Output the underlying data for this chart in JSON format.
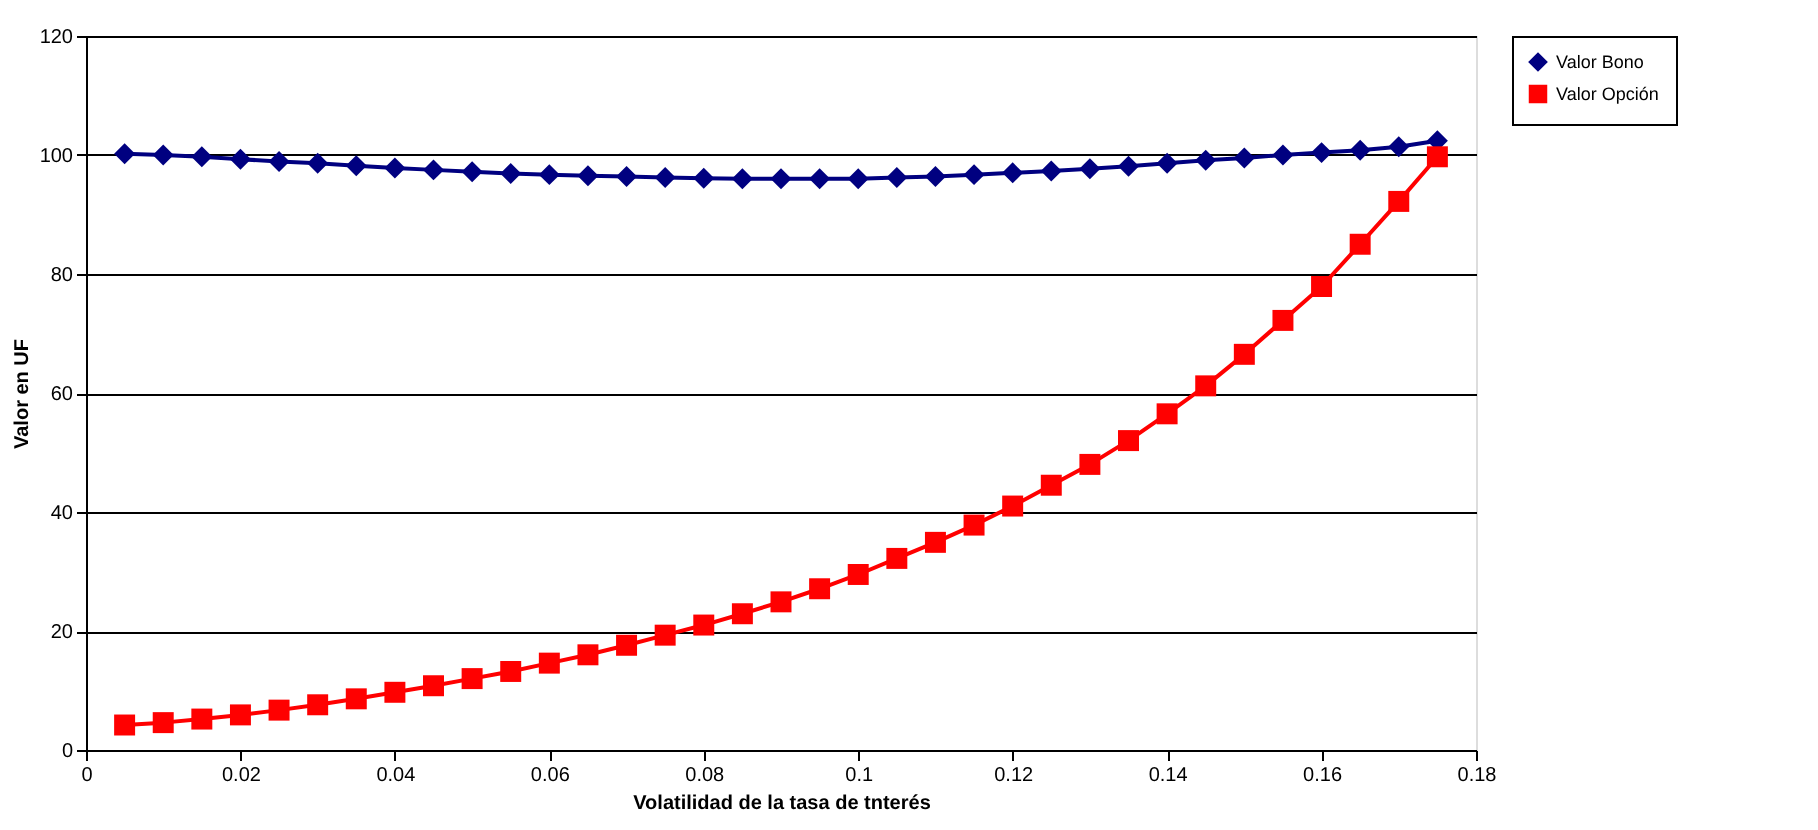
{
  "chart_data": {
    "type": "line",
    "xlabel": "Volatilidad de la tasa de tnterés",
    "ylabel": "Valor en UF",
    "x": [
      0.005,
      0.01,
      0.015,
      0.02,
      0.025,
      0.03,
      0.035,
      0.04,
      0.045,
      0.05,
      0.055,
      0.06,
      0.065,
      0.07,
      0.075,
      0.08,
      0.085,
      0.09,
      0.095,
      0.1,
      0.105,
      0.11,
      0.115,
      0.12,
      0.125,
      0.13,
      0.135,
      0.14,
      0.145,
      0.15,
      0.155,
      0.16,
      0.165,
      0.17,
      0.175
    ],
    "series": [
      {
        "name": "Valor Bono",
        "color": "#000080",
        "marker": "diamond",
        "values": [
          100.2,
          100.0,
          99.7,
          99.3,
          98.9,
          98.6,
          98.2,
          97.8,
          97.5,
          97.2,
          96.9,
          96.7,
          96.5,
          96.4,
          96.2,
          96.1,
          96.0,
          96.0,
          96.0,
          96.0,
          96.2,
          96.4,
          96.7,
          97.0,
          97.3,
          97.7,
          98.1,
          98.6,
          99.1,
          99.5,
          100.0,
          100.4,
          100.8,
          101.4,
          102.4
        ]
      },
      {
        "name": "Valor Opción",
        "color": "#ff0000",
        "marker": "square",
        "values": [
          4.2,
          4.6,
          5.2,
          5.9,
          6.7,
          7.6,
          8.6,
          9.7,
          10.8,
          12.0,
          13.2,
          14.6,
          16.0,
          17.6,
          19.3,
          21.0,
          22.9,
          24.9,
          27.1,
          29.5,
          32.2,
          34.9,
          37.8,
          41.0,
          44.5,
          48.0,
          52.0,
          56.5,
          61.2,
          66.5,
          72.2,
          77.9,
          85.0,
          92.2,
          99.7
        ]
      }
    ],
    "xlim": [
      0,
      0.18
    ],
    "xticks": [
      0,
      0.02,
      0.04,
      0.06,
      0.08,
      0.1,
      0.12,
      0.14,
      0.16,
      0.18
    ],
    "ylim": [
      0,
      120
    ],
    "yticks": [
      0,
      20,
      40,
      60,
      80,
      100,
      120
    ],
    "grid": "y",
    "legend": "right",
    "line_style": "solid"
  }
}
